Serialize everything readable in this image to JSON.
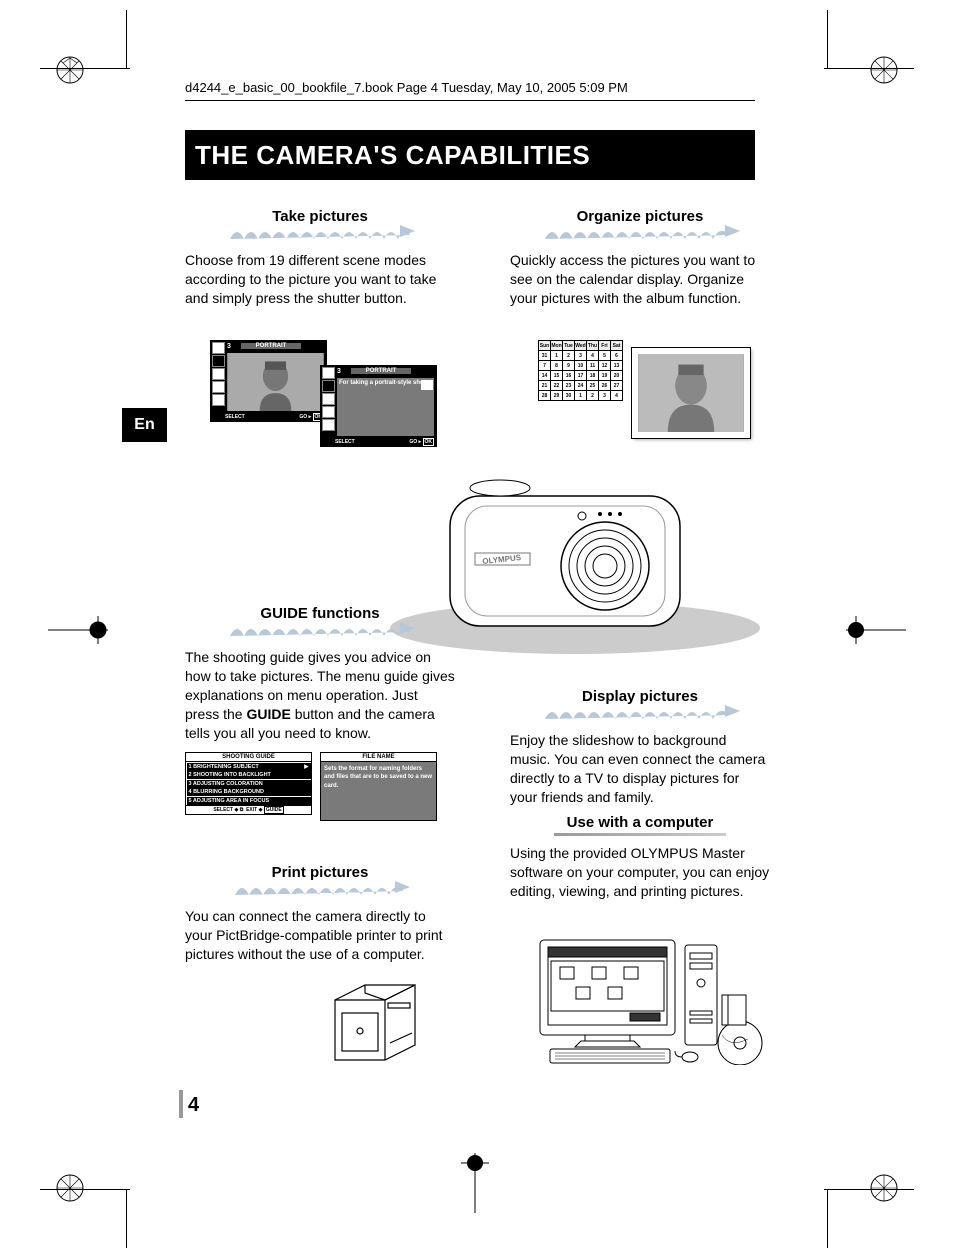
{
  "header": "d4244_e_basic_00_bookfile_7.book  Page 4  Tuesday, May 10, 2005  5:09 PM",
  "title": "THE CAMERA'S CAPABILITIES",
  "lang_tab": "En",
  "page_number": "4",
  "sections": {
    "take": {
      "heading": "Take pictures",
      "body": "Choose from 19 different scene modes according to the picture you want to take and simply press the shutter button.",
      "screen1": {
        "mode_num": "3",
        "mode_label": "PORTRAIT",
        "select": "SELECT",
        "go": "GO",
        "ok": "OK"
      },
      "screen2": {
        "mode_num": "3",
        "mode_label": "PORTRAIT",
        "desc": "For taking a portrait-style shot.",
        "select": "SELECT",
        "go": "GO",
        "ok": "OK"
      }
    },
    "organize": {
      "heading": "Organize pictures",
      "body": "Quickly access the pictures you want to see on the calendar display. Organize your pictures with the album function.",
      "calendar": {
        "days": [
          "Sun",
          "Mon",
          "Tue",
          "Wed",
          "Thu",
          "Fri",
          "Sat"
        ],
        "rows": [
          [
            "31",
            "1",
            "2",
            "3",
            "4",
            "5",
            "6"
          ],
          [
            "7",
            "8",
            "9",
            "10",
            "11",
            "12",
            "13"
          ],
          [
            "14",
            "15",
            "16",
            "17",
            "18",
            "19",
            "20"
          ],
          [
            "21",
            "22",
            "23",
            "24",
            "25",
            "26",
            "27"
          ],
          [
            "28",
            "29",
            "30",
            "1",
            "2",
            "3",
            "4"
          ]
        ]
      }
    },
    "guide": {
      "heading": "GUIDE functions",
      "body_pre": "The shooting guide gives you advice on how to take pictures. The menu guide gives explanations on menu operation. Just press the ",
      "body_bold": "GUIDE",
      "body_post": " button and the camera tells you all you need to know.",
      "panel_left": {
        "title": "SHOOTING GUIDE",
        "rows": [
          "1 BRIGHTENING SUBJECT",
          "2 SHOOTING INTO BACKLIGHT",
          "3 ADJUSTING COLORATION",
          "4 BLURRING BACKGROUND",
          "5 ADJUSTING AREA IN FOCUS"
        ],
        "footer_select": "SELECT",
        "footer_exit": "EXIT",
        "footer_guide": "GUIDE"
      },
      "panel_right": {
        "title": "FILE NAME",
        "desc": "Sets the format for naming folders and files that are to be saved to a new card."
      }
    },
    "print": {
      "heading": "Print pictures",
      "body": "You can connect the camera directly to your PictBridge-compatible printer to print pictures without the use of a computer."
    },
    "display": {
      "heading": "Display pictures",
      "body": "Enjoy the slideshow to background music. You can even connect the camera directly to a TV to display pictures for your friends and family."
    },
    "computer": {
      "heading": "Use with a computer",
      "body": "Using the provided OLYMPUS Master software on your computer, you can enjoy editing, viewing, and printing pictures."
    }
  },
  "colors": {
    "wave_shadow": "#b8c8d8",
    "wave_highlight": "#8ca8c4",
    "lcd_gray": "#7a7a7a",
    "lcd_dark": "#4a4a4a"
  },
  "camera_brand": "OLYMPUS"
}
